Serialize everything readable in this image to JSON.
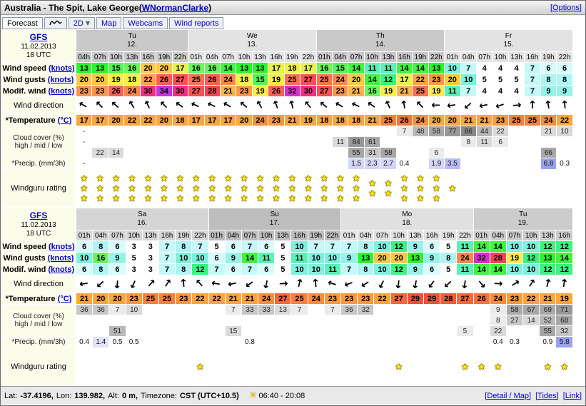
{
  "header": {
    "title": "Australia - The Spit, Lake George",
    "paren_open": "(",
    "paren_close": ")",
    "user": "WNormanClarke",
    "options": "[Options]"
  },
  "tabs": {
    "forecast": "Forecast",
    "two_d": "2D",
    "map": "Map",
    "webcams": "Webcams",
    "wind_reports": "Wind reports"
  },
  "icons": {
    "arrow_up": "↑",
    "star": "★",
    "sun": "☀",
    "caret_down": "▼"
  },
  "row_labels": {
    "wind_speed": "Wind speed",
    "wind_gusts": "Wind gusts",
    "knots_link": "(knots)",
    "modif_wind": "Modif. wind",
    "wind_direction": "Wind direction",
    "temperature": "*Temperature",
    "temp_unit_link": "(°C)",
    "cloud": "Cloud cover (%)",
    "cloud_sub": "high / mid / low",
    "precip": "*Precip. (mm/3h)",
    "rating": "Windguru rating"
  },
  "scales": {
    "wind": [
      [
        0,
        "#ffffff"
      ],
      [
        5,
        "#ffffff"
      ],
      [
        6,
        "#d8fcfc"
      ],
      [
        7,
        "#c4f9f9"
      ],
      [
        8,
        "#adf6f4"
      ],
      [
        9,
        "#96f3ea"
      ],
      [
        10,
        "#7df1dc"
      ],
      [
        11,
        "#5af2b4"
      ],
      [
        12,
        "#3cf380"
      ],
      [
        13,
        "#2bf52b"
      ],
      [
        14,
        "#40f440"
      ],
      [
        15,
        "#55f450"
      ],
      [
        16,
        "#6cf45c"
      ],
      [
        17,
        "#e9f24c"
      ],
      [
        18,
        "#f4f04a"
      ],
      [
        19,
        "#fcec49"
      ],
      [
        20,
        "#fcc84b"
      ],
      [
        21,
        "#fcb44c"
      ],
      [
        22,
        "#fca44d"
      ],
      [
        23,
        "#fc954e"
      ],
      [
        24,
        "#fb864f"
      ],
      [
        25,
        "#fa7250"
      ],
      [
        26,
        "#f95f52"
      ],
      [
        27,
        "#f85153"
      ],
      [
        28,
        "#f74355"
      ],
      [
        29,
        "#f63960"
      ],
      [
        30,
        "#f42e7e"
      ],
      [
        31,
        "#ea2da4"
      ],
      [
        32,
        "#de2cc9"
      ],
      [
        33,
        "#d130d5"
      ],
      [
        34,
        "#c334e0"
      ]
    ],
    "temp": [
      [
        16,
        "#fba63b"
      ],
      [
        22,
        "#fba63b"
      ],
      [
        24,
        "#fa8c3b"
      ],
      [
        26,
        "#f9723a"
      ],
      [
        28,
        "#f75939"
      ],
      [
        30,
        "#f54437"
      ]
    ],
    "cloud": [
      [
        85,
        "#8a8a8a"
      ],
      [
        70,
        "#989898"
      ],
      [
        55,
        "#a7a7a7"
      ],
      [
        40,
        "#b7b7b7"
      ],
      [
        25,
        "#c7c7c7"
      ],
      [
        10,
        "#dadada"
      ],
      [
        0,
        "#ebebeb"
      ]
    ],
    "precip": [
      [
        5,
        "#9aa2ee"
      ],
      [
        3,
        "#b9bcf3"
      ],
      [
        1.5,
        "#d4d6f8"
      ],
      [
        1,
        "#e2e3fa"
      ]
    ]
  },
  "tables": [
    {
      "model": "GFS",
      "run_date": "11.02.2013",
      "run_utc": "18 UTC",
      "day_groups": [
        {
          "day": "Tu",
          "date": "12.",
          "shade": "#c9c9c9",
          "hours": [
            "04h",
            "07h",
            "10h",
            "13h",
            "16h",
            "19h",
            "22h"
          ]
        },
        {
          "day": "We",
          "date": "13.",
          "shade": "#e3e3e3",
          "hours": [
            "01h",
            "04h",
            "07h",
            "10h",
            "13h",
            "16h",
            "19h",
            "22h"
          ]
        },
        {
          "day": "Th",
          "date": "14.",
          "shade": "#c9c9c9",
          "hours": [
            "01h",
            "04h",
            "07h",
            "10h",
            "13h",
            "16h",
            "19h",
            "22h"
          ]
        },
        {
          "day": "Fr",
          "date": "15.",
          "shade": "#e3e3e3",
          "hours": [
            "01h",
            "04h",
            "07h",
            "10h",
            "13h",
            "16h",
            "19h",
            "22h"
          ]
        }
      ],
      "rows": {
        "wind_speed": [
          13,
          13,
          15,
          16,
          20,
          20,
          17,
          16,
          16,
          14,
          13,
          13,
          17,
          18,
          17,
          16,
          15,
          14,
          11,
          11,
          14,
          14,
          13,
          10,
          7,
          4,
          4,
          4,
          7,
          6,
          6
        ],
        "wind_gusts": [
          20,
          20,
          19,
          18,
          22,
          26,
          27,
          25,
          26,
          24,
          18,
          15,
          19,
          25,
          27,
          25,
          24,
          20,
          14,
          12,
          17,
          22,
          23,
          20,
          10,
          5,
          5,
          5,
          7,
          8,
          8
        ],
        "modif_wind": [
          23,
          23,
          26,
          24,
          30,
          34,
          30,
          27,
          28,
          21,
          23,
          19,
          26,
          32,
          30,
          27,
          23,
          21,
          16,
          19,
          21,
          25,
          19,
          11,
          7,
          4,
          4,
          4,
          7,
          9,
          9
        ],
        "wind_dir_deg": [
          300,
          315,
          310,
          330,
          335,
          315,
          305,
          295,
          295,
          300,
          310,
          330,
          340,
          345,
          320,
          310,
          300,
          295,
          305,
          335,
          350,
          315,
          270,
          262,
          228,
          258,
          252,
          85,
          0,
          352,
          356
        ],
        "temperature": [
          17,
          17,
          20,
          22,
          22,
          20,
          18,
          17,
          17,
          17,
          20,
          24,
          23,
          21,
          19,
          18,
          18,
          18,
          21,
          25,
          26,
          24,
          20,
          20,
          21,
          21,
          23,
          25,
          25,
          24,
          22
        ],
        "cloud_high": [
          "-",
          null,
          null,
          null,
          null,
          null,
          null,
          null,
          null,
          null,
          null,
          null,
          null,
          null,
          null,
          null,
          null,
          null,
          null,
          null,
          7,
          48,
          58,
          77,
          86,
          44,
          22,
          null,
          null,
          21,
          10
        ],
        "cloud_mid": [
          "-",
          null,
          null,
          null,
          null,
          null,
          null,
          null,
          null,
          null,
          null,
          null,
          null,
          null,
          null,
          null,
          11,
          84,
          61,
          null,
          null,
          null,
          null,
          null,
          8,
          11,
          6,
          null,
          null,
          null,
          null
        ],
        "cloud_low": [
          null,
          22,
          14,
          null,
          null,
          null,
          null,
          null,
          null,
          null,
          null,
          null,
          null,
          null,
          null,
          null,
          null,
          55,
          31,
          58,
          null,
          null,
          6,
          null,
          null,
          null,
          null,
          null,
          null,
          66,
          null
        ],
        "precip": [
          "-",
          null,
          null,
          null,
          null,
          null,
          null,
          null,
          null,
          null,
          null,
          null,
          null,
          null,
          null,
          null,
          null,
          1.5,
          2.3,
          2.7,
          0.4,
          null,
          1.9,
          3.5,
          null,
          null,
          null,
          null,
          null,
          6.8,
          0.3
        ],
        "rating": [
          3,
          3,
          3,
          3,
          3,
          3,
          3,
          3,
          3,
          3,
          3,
          3,
          3,
          3,
          3,
          3,
          3,
          3,
          2,
          2,
          3,
          3,
          3,
          1,
          0,
          0,
          0,
          0,
          0,
          0,
          0
        ]
      }
    },
    {
      "model": "GFS",
      "run_date": "11.02.2013",
      "run_utc": "18 UTC",
      "day_groups": [
        {
          "day": "Sa",
          "date": "16.",
          "shade": "#d5d5d5",
          "hours": [
            "01h",
            "04h",
            "07h",
            "10h",
            "13h",
            "16h",
            "19h",
            "22h"
          ]
        },
        {
          "day": "Su",
          "date": "17.",
          "shade": "#bdbdbd",
          "hours": [
            "01h",
            "04h",
            "07h",
            "10h",
            "13h",
            "16h",
            "19h",
            "22h"
          ]
        },
        {
          "day": "Mo",
          "date": "18.",
          "shade": "#e0e0e0",
          "hours": [
            "01h",
            "04h",
            "07h",
            "10h",
            "13h",
            "16h",
            "19h",
            "22h"
          ]
        },
        {
          "day": "Tu",
          "date": "19.",
          "shade": "#cccccc",
          "hours": [
            "01h",
            "04h",
            "07h",
            "10h",
            "13h",
            "16h"
          ]
        }
      ],
      "rows": {
        "wind_speed": [
          6,
          8,
          6,
          3,
          3,
          7,
          8,
          7,
          5,
          6,
          7,
          6,
          5,
          10,
          7,
          7,
          7,
          8,
          10,
          12,
          9,
          6,
          5,
          11,
          14,
          14,
          10,
          10,
          12,
          12
        ],
        "wind_gusts": [
          10,
          16,
          9,
          5,
          3,
          7,
          10,
          10,
          6,
          9,
          14,
          11,
          5,
          11,
          10,
          10,
          9,
          13,
          20,
          20,
          13,
          9,
          8,
          24,
          32,
          28,
          19,
          12,
          13,
          14
        ],
        "modif_wind": [
          6,
          8,
          6,
          3,
          3,
          7,
          8,
          12,
          7,
          6,
          7,
          6,
          5,
          10,
          10,
          11,
          7,
          8,
          10,
          12,
          9,
          6,
          5,
          11,
          14,
          14,
          10,
          10,
          12,
          12
        ],
        "wind_dir_deg": [
          262,
          228,
          185,
          205,
          42,
          32,
          355,
          318,
          280,
          258,
          235,
          192,
          88,
          12,
          355,
          288,
          250,
          238,
          205,
          188,
          192,
          215,
          228,
          188,
          140,
          92,
          58,
          32,
          14,
          8
        ],
        "temperature": [
          21,
          20,
          20,
          23,
          25,
          25,
          23,
          22,
          22,
          21,
          21,
          24,
          27,
          25,
          24,
          23,
          23,
          23,
          22,
          27,
          29,
          29,
          28,
          27,
          26,
          24,
          23,
          22,
          21,
          19
        ],
        "cloud_high": [
          36,
          36,
          7,
          10,
          null,
          null,
          null,
          null,
          null,
          7,
          33,
          33,
          13,
          7,
          null,
          7,
          36,
          32,
          null,
          null,
          null,
          null,
          null,
          null,
          null,
          9,
          58,
          67,
          69,
          71
        ],
        "cloud_mid": [
          null,
          null,
          null,
          null,
          null,
          null,
          null,
          null,
          null,
          null,
          null,
          null,
          null,
          null,
          null,
          null,
          null,
          null,
          null,
          null,
          null,
          null,
          null,
          null,
          null,
          8,
          27,
          14,
          52,
          68
        ],
        "cloud_low": [
          null,
          null,
          51,
          null,
          null,
          null,
          null,
          null,
          null,
          15,
          null,
          null,
          null,
          null,
          null,
          null,
          null,
          null,
          null,
          null,
          null,
          null,
          null,
          5,
          null,
          22,
          null,
          null,
          55,
          32
        ],
        "precip": [
          0.4,
          1.4,
          0.5,
          0.5,
          null,
          null,
          null,
          null,
          null,
          null,
          0.8,
          null,
          null,
          null,
          null,
          null,
          null,
          null,
          null,
          null,
          null,
          null,
          null,
          null,
          null,
          0.4,
          0.3,
          null,
          0.9,
          5.8
        ],
        "rating": [
          0,
          0,
          0,
          0,
          0,
          0,
          0,
          1,
          0,
          0,
          0,
          0,
          0,
          0,
          0,
          0,
          0,
          0,
          0,
          1,
          0,
          0,
          0,
          1,
          1,
          1,
          0,
          0,
          1,
          1
        ]
      }
    }
  ],
  "footer": {
    "lat_label": "Lat:",
    "lat_value": "-37.4196,",
    "lon_label": "Lon:",
    "lon_value": "139.982,",
    "alt_label": "Alt:",
    "alt_value": "0 m,",
    "tz_label": "Timezone:",
    "tz_value": "CST (UTC+10.5)",
    "sun_times": "06:40 - 20:08",
    "links": {
      "detail": "[Detail / Map]",
      "tides": "[Tides]",
      "link": "[Link]"
    }
  }
}
